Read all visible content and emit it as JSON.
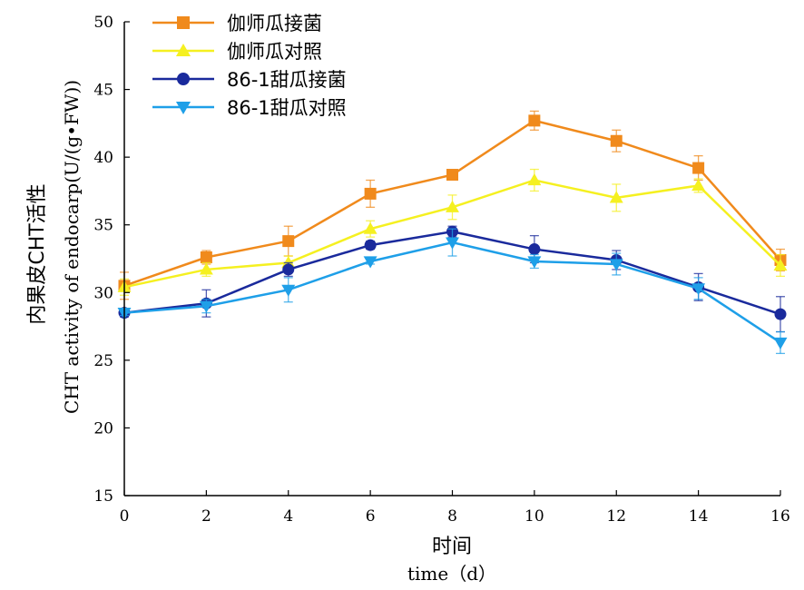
{
  "chart_data": {
    "type": "line",
    "xlabel": "时间",
    "xlabel_en": "time（d）",
    "ylabel": "内果皮CHT活性",
    "ylabel_en": "CHT activity of endocarp(U/(g•FW))",
    "xlim": [
      0,
      16
    ],
    "ylim": [
      15,
      50
    ],
    "x": [
      0,
      2,
      4,
      6,
      8,
      10,
      12,
      14,
      16
    ],
    "x_ticks": [
      "0",
      "2",
      "4",
      "6",
      "8",
      "10",
      "12",
      "14",
      "16"
    ],
    "y_ticks": [
      "15",
      "20",
      "25",
      "30",
      "35",
      "40",
      "45",
      "50"
    ],
    "legend_position": "top-left",
    "grid": false,
    "series": [
      {
        "name": "伽师瓜接菌",
        "color": "#F08A1C",
        "marker": "square",
        "values": [
          30.5,
          32.6,
          33.8,
          37.3,
          38.7,
          42.7,
          41.2,
          39.2,
          32.4
        ],
        "errors": [
          1.0,
          0.5,
          1.1,
          1.0,
          0.3,
          0.7,
          0.8,
          0.9,
          0.8
        ]
      },
      {
        "name": "伽师瓜对照",
        "color": "#F5F020",
        "marker": "triangle-up",
        "values": [
          30.4,
          31.7,
          32.2,
          34.7,
          36.3,
          38.3,
          37.0,
          37.9,
          32.0
        ],
        "errors": [
          0.6,
          0.5,
          0.5,
          0.6,
          0.9,
          0.8,
          1.0,
          0.5,
          0.8
        ]
      },
      {
        "name": "86-1甜瓜接菌",
        "color": "#1A2A9C",
        "marker": "circle",
        "values": [
          28.5,
          29.2,
          31.7,
          33.5,
          34.5,
          33.2,
          32.4,
          30.4,
          28.4
        ],
        "errors": [
          0.3,
          1.0,
          0.5,
          0.3,
          0.4,
          1.0,
          0.7,
          1.0,
          1.3
        ]
      },
      {
        "name": "86-1甜瓜对照",
        "color": "#1E9FE8",
        "marker": "triangle-down",
        "values": [
          28.5,
          29.0,
          30.2,
          32.3,
          33.7,
          32.3,
          32.1,
          30.3,
          26.3
        ],
        "errors": [
          0.2,
          0.5,
          0.9,
          0.2,
          1.0,
          0.5,
          0.8,
          0.8,
          0.8
        ]
      }
    ]
  }
}
